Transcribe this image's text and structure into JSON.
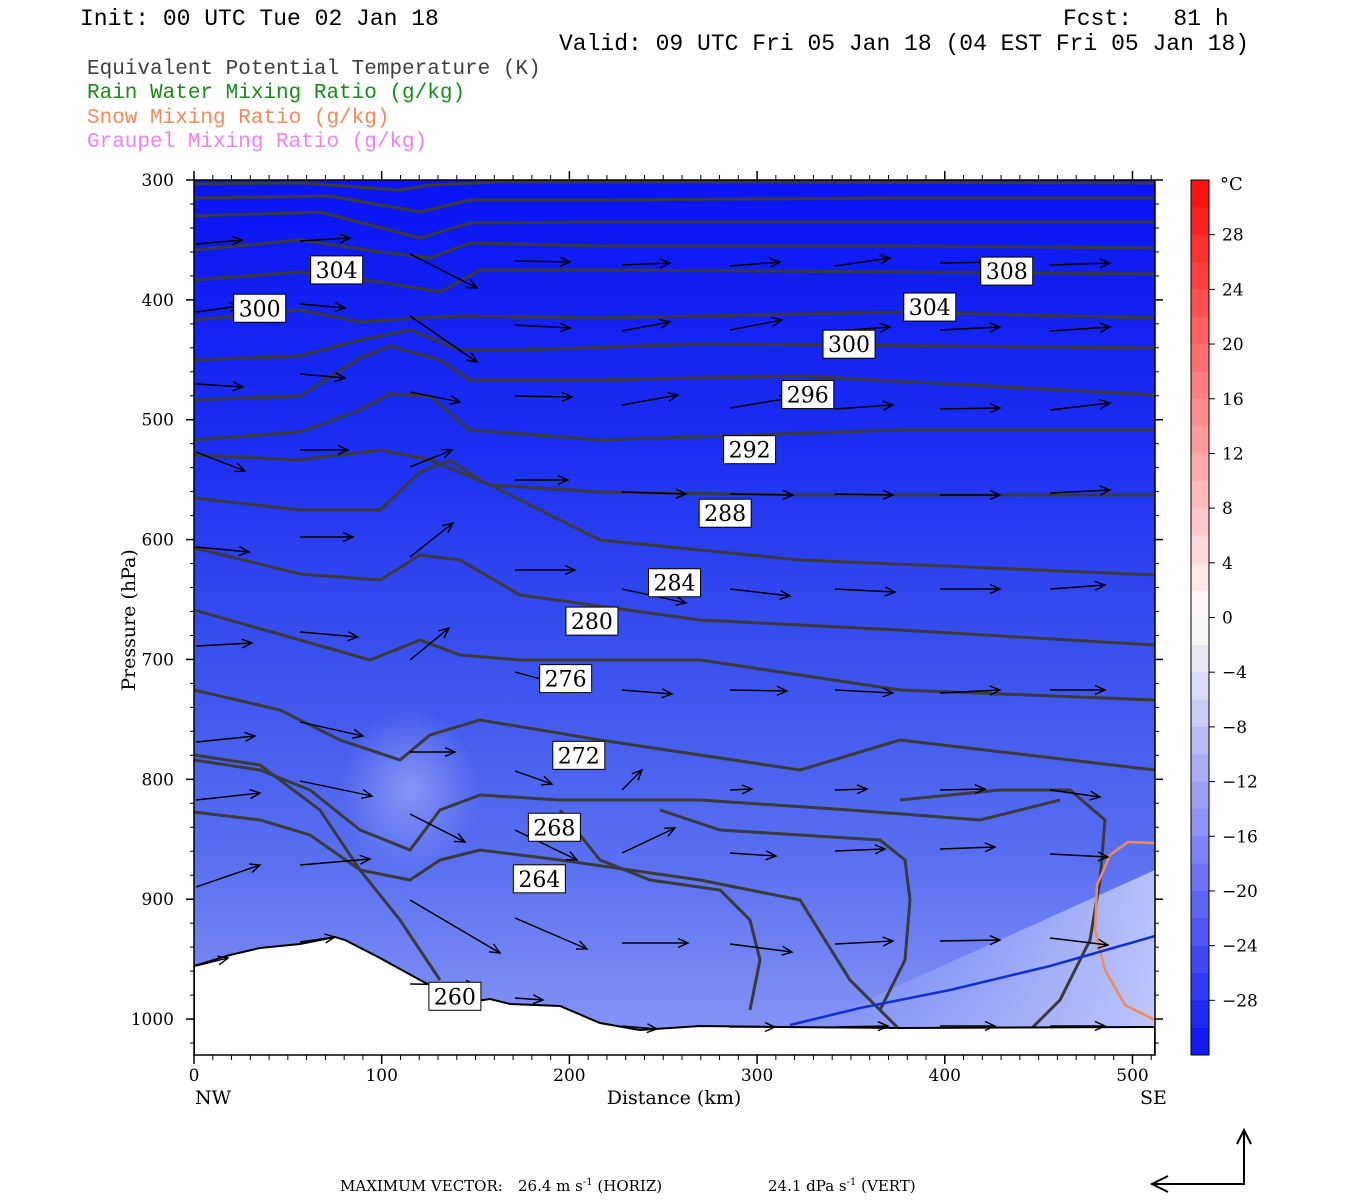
{
  "header": {
    "init": "Init: 00 UTC Tue 02 Jan 18",
    "fcst": "Fcst:   81 h",
    "valid": "Valid: 09 UTC Fri 05 Jan 18 (04 EST Fri 05 Jan 18)"
  },
  "legend": [
    {
      "label": "Equivalent Potential Temperature (K)",
      "color": "#404040"
    },
    {
      "label": "Rain Water Mixing Ratio (g/kg)",
      "color": "#1a8a1a"
    },
    {
      "label": "Snow Mixing Ratio (g/kg)",
      "color": "#f28a5a"
    },
    {
      "label": "Graupel Mixing Ratio (g/kg)",
      "color": "#ee82ee"
    }
  ],
  "chart_data": {
    "type": "cross-section",
    "xlabel": "Distance (km)",
    "ylabel": "Pressure (hPa)",
    "xlim": [
      0,
      512
    ],
    "ylim": [
      1030,
      300
    ],
    "x_ticks": [
      "0",
      "100",
      "200",
      "300",
      "400",
      "500"
    ],
    "y_ticks": [
      "300",
      "400",
      "500",
      "600",
      "700",
      "800",
      "900",
      "1000"
    ],
    "x_endpoints": {
      "left": "NW",
      "right": "SE"
    },
    "theta_e_labels": [
      {
        "text": "304",
        "x": 76,
        "p": 375
      },
      {
        "text": "308",
        "x": 433,
        "p": 376
      },
      {
        "text": "300",
        "x": 35,
        "p": 407
      },
      {
        "text": "304",
        "x": 392,
        "p": 406
      },
      {
        "text": "300",
        "x": 349,
        "p": 437
      },
      {
        "text": "296",
        "x": 327,
        "p": 479
      },
      {
        "text": "292",
        "x": 296,
        "p": 525
      },
      {
        "text": "288",
        "x": 283,
        "p": 578
      },
      {
        "text": "284",
        "x": 256,
        "p": 636
      },
      {
        "text": "280",
        "x": 212,
        "p": 668
      },
      {
        "text": "276",
        "x": 198,
        "p": 716
      },
      {
        "text": "272",
        "x": 205,
        "p": 780
      },
      {
        "text": "268",
        "x": 192,
        "p": 840
      },
      {
        "text": "264",
        "x": 184,
        "p": 883
      },
      {
        "text": "260",
        "x": 139,
        "p": 981
      }
    ],
    "colorbar": {
      "unit": "°C",
      "labels": [
        "28",
        "24",
        "20",
        "16",
        "12",
        "8",
        "4",
        "0",
        "−4",
        "−8",
        "−12",
        "−16",
        "−20",
        "−24",
        "−28"
      ],
      "values": [
        28,
        24,
        20,
        16,
        12,
        8,
        4,
        0,
        -4,
        -8,
        -12,
        -16,
        -20,
        -24,
        -28
      ],
      "min": -32,
      "max": 32
    }
  },
  "footer": {
    "prefix": "MAXIMUM VECTOR:",
    "horiz_value": "26.4 m s",
    "horiz_exp": "-1",
    "horiz_tag": "(HORIZ)",
    "vert_value": "24.1 dPa s",
    "vert_exp": "-1",
    "vert_tag": "(VERT)"
  }
}
